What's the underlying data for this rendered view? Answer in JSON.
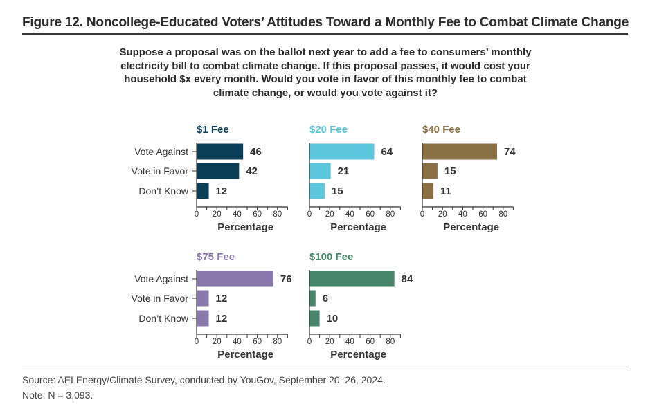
{
  "title": "Figure 12. Noncollege-Educated Voters’ Attitudes Toward a Monthly Fee to Combat Climate Change",
  "question": "Suppose a proposal was on the ballot next year to add a fee to consumers’ monthly electricity bill to combat climate change. If this proposal passes, it would cost your household $x every month. Would you vote in favor of this monthly fee to combat climate change, or would you vote against it?",
  "source": "Source: AEI Energy/Climate Survey, conducted by YouGov, September 20–26, 2024.",
  "note": "Note: N = 3,093.",
  "chart_data": {
    "type": "bar",
    "orientation": "horizontal",
    "categories": [
      "Vote Against",
      "Vote in Favor",
      "Don’t Know"
    ],
    "xlabel": "Percentage",
    "xlim": [
      0,
      90
    ],
    "xticks": [
      0,
      20,
      40,
      60,
      80
    ],
    "series": [
      {
        "name": "$1 Fee",
        "color": "#0b3f57",
        "values": [
          46,
          42,
          12
        ]
      },
      {
        "name": "$20 Fee",
        "color": "#5bc7dc",
        "values": [
          64,
          21,
          15
        ]
      },
      {
        "name": "$40 Fee",
        "color": "#8b6f45",
        "values": [
          74,
          15,
          11
        ]
      },
      {
        "name": "$75 Fee",
        "color": "#8a78ab",
        "values": [
          76,
          12,
          12
        ]
      },
      {
        "name": "$100 Fee",
        "color": "#468569",
        "values": [
          84,
          6,
          10
        ]
      }
    ]
  }
}
